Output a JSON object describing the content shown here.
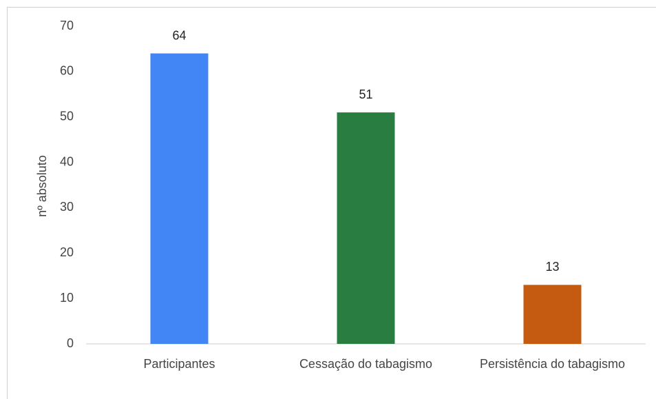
{
  "chart_data": {
    "type": "bar",
    "categories": [
      "Participantes",
      "Cessação do tabagismo",
      "Persistência do tabagismo"
    ],
    "values": [
      64,
      51,
      13
    ],
    "colors": [
      "#4285f4",
      "#2a7d40",
      "#c55a11"
    ],
    "y_label": "nº absoluto",
    "ylim": [
      0,
      70
    ],
    "yticks": [
      0,
      10,
      20,
      30,
      40,
      50,
      60,
      70
    ],
    "grid": false
  }
}
